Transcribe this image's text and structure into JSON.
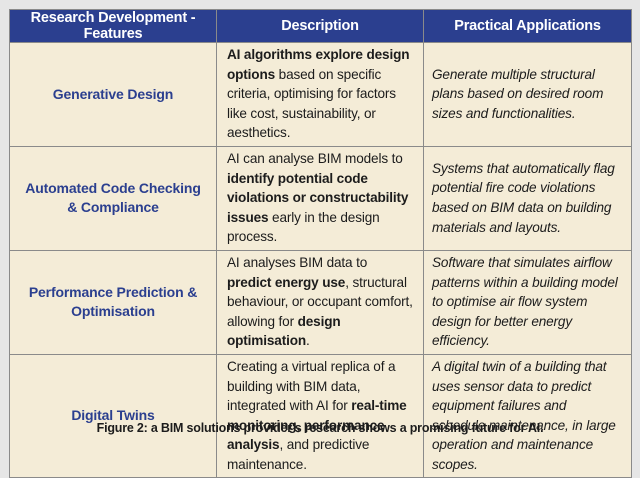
{
  "table": {
    "headers": [
      "Research Development - Features",
      "Description",
      "Practical Applications"
    ],
    "rows": [
      {
        "feature": "Generative Design",
        "description": {
          "bold_1": "AI algorithms explore design options",
          "text_1": " based on specific criteria, optimising for factors like cost, sustainability, or aesthetics."
        },
        "application": "Generate multiple structural plans based on desired room sizes and functionalities."
      },
      {
        "feature": "Automated Code Checking & Compliance",
        "description": {
          "text_1": "AI can analyse BIM models to ",
          "bold_1": "identify potential code violations or constructability issues",
          "text_2": " early in the design process."
        },
        "application": "Systems that automatically flag potential fire code violations based on BIM data on building materials and layouts."
      },
      {
        "feature": "Performance Prediction & Optimisation",
        "description": {
          "text_1": "AI analyses BIM data to ",
          "bold_1": "predict energy use",
          "text_2": ", structural behaviour, or occupant comfort, allowing for ",
          "bold_2": "design optimisation",
          "text_3": "."
        },
        "application": "Software that simulates airflow patterns within a building model to optimise air flow system design for better energy efficiency."
      },
      {
        "feature": "Digital Twins",
        "description": {
          "text_1": "Creating a virtual replica of a building with BIM data, integrated with AI for ",
          "bold_1": "real-time monitoring, performance analysis",
          "text_2": ", and predictive maintenance."
        },
        "application": "A digital twin of a building that uses sensor data to predict equipment failures and schedule maintenance, in large operation and maintenance scopes."
      }
    ]
  },
  "caption": "Figure 2: a BIM solutions provider's research shows a promising future for AI.",
  "colors": {
    "header_bg": "#2b3f8f",
    "header_text": "#ffffff",
    "cell_bg": "#f4ecd7",
    "feature_text": "#2b3f8f",
    "page_bg": "#e6e6e6"
  }
}
